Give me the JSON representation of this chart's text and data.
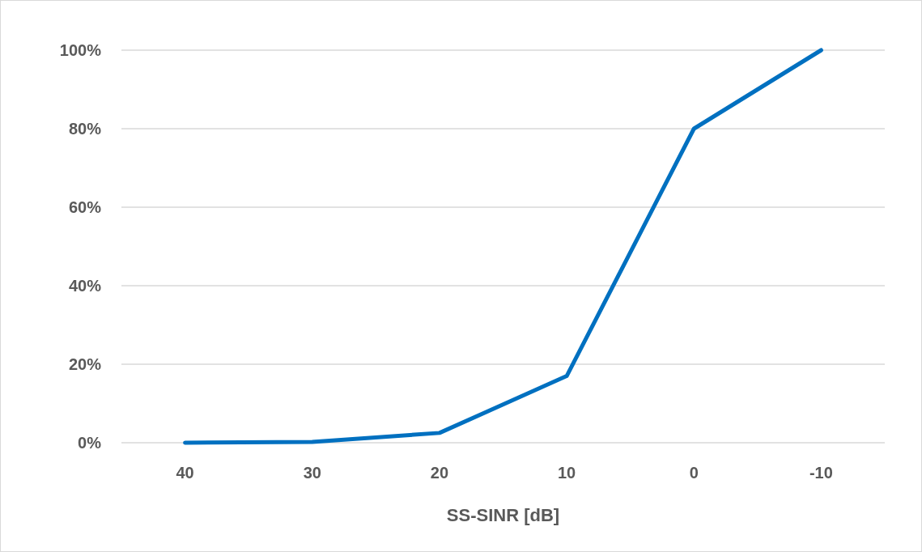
{
  "chart_data": {
    "type": "line",
    "xlabel": "SS-SINR [dB]",
    "categories": [
      "40",
      "30",
      "20",
      "10",
      "0",
      "-10"
    ],
    "series": [
      {
        "color": "#0070c0",
        "values": [
          0,
          0.2,
          2.5,
          17,
          80,
          100
        ]
      }
    ],
    "ylim": [
      0,
      100
    ],
    "yticks": [
      {
        "value": 0,
        "label": "0%"
      },
      {
        "value": 20,
        "label": "20%"
      },
      {
        "value": 40,
        "label": "40%"
      },
      {
        "value": 60,
        "label": "60%"
      },
      {
        "value": 80,
        "label": "80%"
      },
      {
        "value": 100,
        "label": "100%"
      }
    ],
    "grid": "y",
    "marker": "none",
    "line_style": "solid"
  }
}
